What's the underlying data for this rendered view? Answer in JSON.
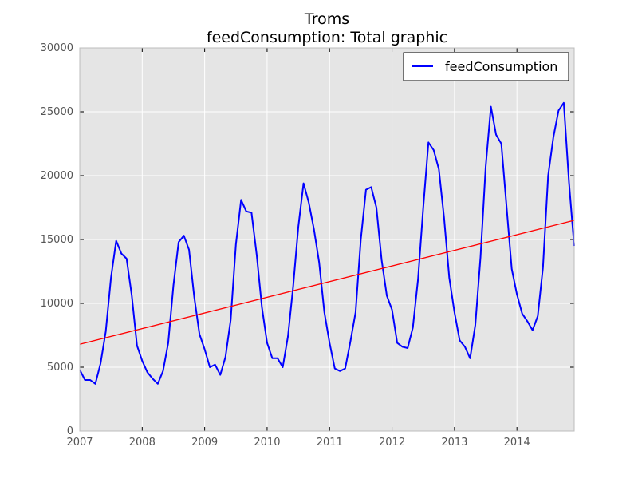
{
  "chart_data": {
    "type": "line",
    "title": "Troms",
    "subtitle": "feedConsumption: Total graphic",
    "xlabel": "",
    "ylabel": "",
    "xlim": [
      2007.0,
      2014.917
    ],
    "ylim": [
      0,
      30000
    ],
    "x_ticks": [
      "2007",
      "2008",
      "2009",
      "2010",
      "2011",
      "2012",
      "2013",
      "2014"
    ],
    "y_ticks": [
      "0",
      "5000",
      "10000",
      "15000",
      "20000",
      "25000",
      "30000"
    ],
    "grid": true,
    "legend": {
      "position": "top-right",
      "entries": [
        "feedConsumption"
      ]
    },
    "colors": {
      "series": "#0000ff",
      "trend": "#ff0000",
      "plot_bg": "#e5e5e5",
      "grid": "#ffffff"
    },
    "series": [
      {
        "name": "feedConsumption",
        "x": [
          "2007-01",
          "2007-02",
          "2007-03",
          "2007-04",
          "2007-05",
          "2007-06",
          "2007-07",
          "2007-08",
          "2007-09",
          "2007-10",
          "2007-11",
          "2007-12",
          "2008-01",
          "2008-02",
          "2008-03",
          "2008-04",
          "2008-05",
          "2008-06",
          "2008-07",
          "2008-08",
          "2008-09",
          "2008-10",
          "2008-11",
          "2008-12",
          "2009-01",
          "2009-02",
          "2009-03",
          "2009-04",
          "2009-05",
          "2009-06",
          "2009-07",
          "2009-08",
          "2009-09",
          "2009-10",
          "2009-11",
          "2009-12",
          "2010-01",
          "2010-02",
          "2010-03",
          "2010-04",
          "2010-05",
          "2010-06",
          "2010-07",
          "2010-08",
          "2010-09",
          "2010-10",
          "2010-11",
          "2010-12",
          "2011-01",
          "2011-02",
          "2011-03",
          "2011-04",
          "2011-05",
          "2011-06",
          "2011-07",
          "2011-08",
          "2011-09",
          "2011-10",
          "2011-11",
          "2011-12",
          "2012-01",
          "2012-02",
          "2012-03",
          "2012-04",
          "2012-05",
          "2012-06",
          "2012-07",
          "2012-08",
          "2012-09",
          "2012-10",
          "2012-11",
          "2012-12",
          "2013-01",
          "2013-02",
          "2013-03",
          "2013-04",
          "2013-05",
          "2013-06",
          "2013-07",
          "2013-08",
          "2013-09",
          "2013-10",
          "2013-11",
          "2013-12",
          "2014-01",
          "2014-02",
          "2014-03",
          "2014-04",
          "2014-05",
          "2014-06",
          "2014-07",
          "2014-08",
          "2014-09",
          "2014-10",
          "2014-11",
          "2014-12"
        ],
        "values": [
          4800,
          4000,
          4000,
          3700,
          5300,
          7800,
          12000,
          14900,
          13900,
          13500,
          10600,
          6700,
          5500,
          4600,
          4100,
          3700,
          4700,
          6900,
          11400,
          14800,
          15300,
          14200,
          10500,
          7600,
          6400,
          5000,
          5200,
          4400,
          5800,
          8700,
          14600,
          18100,
          17200,
          17100,
          13800,
          9700,
          6900,
          5700,
          5700,
          5000,
          7400,
          11300,
          16000,
          19400,
          17900,
          15800,
          13200,
          9300,
          6900,
          4900,
          4700,
          4900,
          7000,
          9300,
          15000,
          18900,
          19100,
          17500,
          13400,
          10600,
          9500,
          6900,
          6600,
          6500,
          8100,
          11900,
          17500,
          22600,
          22000,
          20500,
          16700,
          12000,
          9300,
          7100,
          6600,
          5700,
          8300,
          13600,
          20700,
          25400,
          23200,
          22500,
          17600,
          12700,
          10700,
          9200,
          8600,
          7900,
          9000,
          12800,
          20000,
          23000,
          25100,
          25700,
          19500,
          14500
        ]
      }
    ],
    "trend_line": {
      "x": [
        "2007-01",
        "2014-12"
      ],
      "values": [
        6800,
        16500
      ]
    }
  }
}
